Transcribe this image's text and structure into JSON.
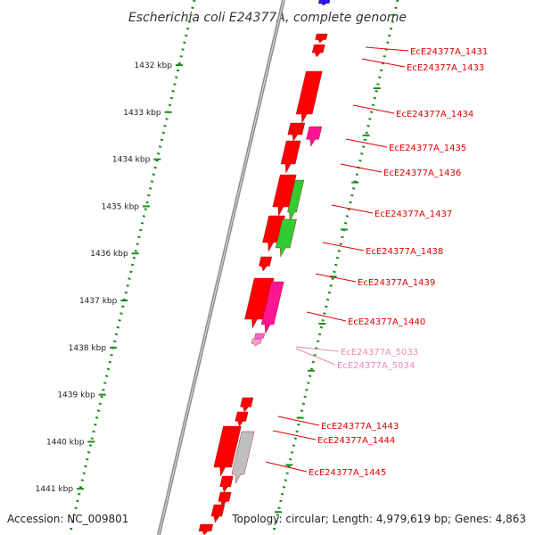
{
  "title": "Escherichia coli E24377A, complete genome",
  "accession": "Accession: NC_009801",
  "topology": "Topology: circular; Length: 4,979,619 bp; Genes: 4,863",
  "colors": {
    "background": "#ffffff",
    "backbone": "#8c8c8c",
    "tick_dots": "#1e8c1e",
    "gene_red": "#ff0000",
    "gene_pink": "#ff1493",
    "gene_green": "#33cc33",
    "gene_gray": "#bfbfbf",
    "gene_blue": "#1a1aff",
    "label_red": "#dd0000",
    "label_pink": "#ee88bb"
  },
  "axis": {
    "unit": "kbp",
    "ticks": [
      1432,
      1433,
      1434,
      1435,
      1436,
      1437,
      1438,
      1439,
      1440,
      1441
    ],
    "tick_labels": [
      "1432 kbp",
      "1433 kbp",
      "1434 kbp",
      "1435 kbp",
      "1436 kbp",
      "1437 kbp",
      "1438 kbp",
      "1439 kbp",
      "1440 kbp",
      "1441 kbp"
    ]
  },
  "gene_labels": [
    {
      "text": "EcE24377A_1431",
      "kind": "coding"
    },
    {
      "text": "EcE24377A_1433",
      "kind": "coding"
    },
    {
      "text": "EcE24377A_1434",
      "kind": "coding"
    },
    {
      "text": "EcE24377A_1435",
      "kind": "coding"
    },
    {
      "text": "EcE24377A_1436",
      "kind": "coding"
    },
    {
      "text": "EcE24377A_1437",
      "kind": "coding"
    },
    {
      "text": "EcE24377A_1438",
      "kind": "coding"
    },
    {
      "text": "EcE24377A_1439",
      "kind": "coding"
    },
    {
      "text": "EcE24377A_1440",
      "kind": "coding"
    },
    {
      "text": "EcE24377A_5033",
      "kind": "rna"
    },
    {
      "text": "EcE24377A_5034",
      "kind": "rna"
    },
    {
      "text": "EcE24377A_1443",
      "kind": "coding"
    },
    {
      "text": "EcE24377A_1444",
      "kind": "coding"
    },
    {
      "text": "EcE24377A_1445",
      "kind": "coding"
    }
  ]
}
